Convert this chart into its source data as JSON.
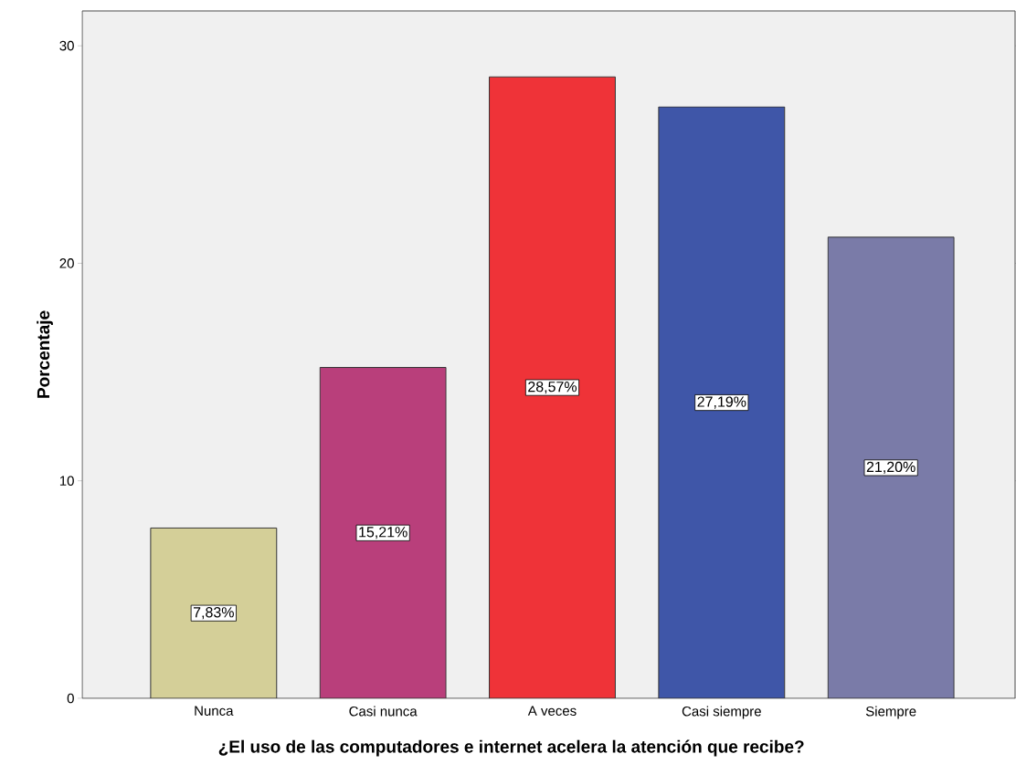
{
  "chart_data": {
    "type": "bar",
    "xlabel": "¿El uso de las computadores e internet acelera la atención que recibe?",
    "ylabel": "Porcentaje",
    "categories": [
      "Nunca",
      "Casi nunca",
      "A veces",
      "Casi siempre",
      "Siempre"
    ],
    "values": [
      7.83,
      15.21,
      28.57,
      27.19,
      21.2
    ],
    "colors": [
      "#d4cf98",
      "#b93f7b",
      "#ef3338",
      "#3f56a8",
      "#7a7ba8"
    ],
    "value_labels": [
      "7,83%",
      "15,21%",
      "28,57%",
      "27,19%",
      "21,20%"
    ],
    "ylim": [
      0,
      31.6
    ],
    "yticks": [
      0,
      10,
      20,
      30
    ],
    "grid": false
  }
}
